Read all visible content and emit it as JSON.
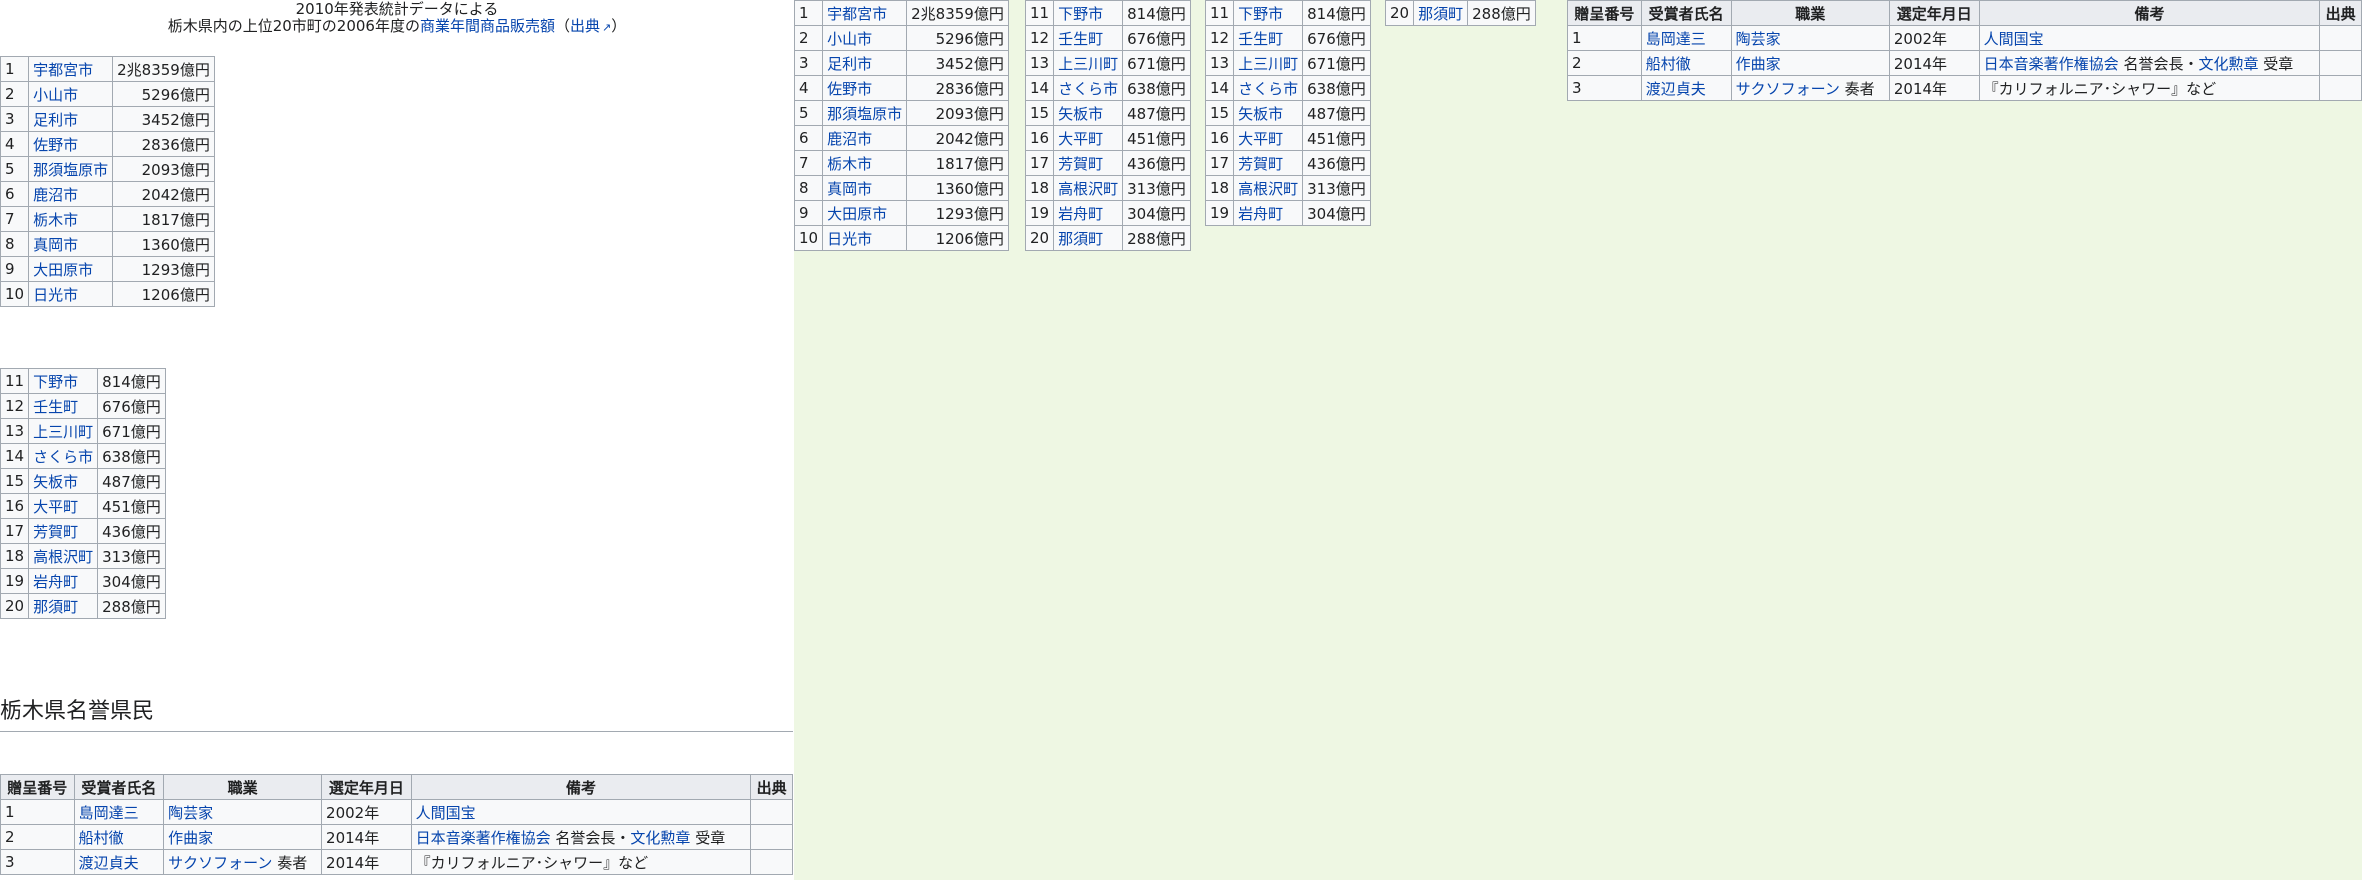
{
  "caption": {
    "line1": "2010年発表統計データによる",
    "line2_prefix": "栃木県内の上位20市町の2006年度の",
    "line2_link": "商業年間商品販売額",
    "line2_open": "（",
    "line2_source": "出典",
    "line2_close": "）"
  },
  "ranks": [
    {
      "rank": "1",
      "city": "宇都宮市",
      "value": "2兆8359億円"
    },
    {
      "rank": "2",
      "city": "小山市",
      "value": "5296億円"
    },
    {
      "rank": "3",
      "city": "足利市",
      "value": "3452億円"
    },
    {
      "rank": "4",
      "city": "佐野市",
      "value": "2836億円"
    },
    {
      "rank": "5",
      "city": "那須塩原市",
      "value": "2093億円"
    },
    {
      "rank": "6",
      "city": "鹿沼市",
      "value": "2042億円"
    },
    {
      "rank": "7",
      "city": "栃木市",
      "value": "1817億円"
    },
    {
      "rank": "8",
      "city": "真岡市",
      "value": "1360億円"
    },
    {
      "rank": "9",
      "city": "大田原市",
      "value": "1293億円"
    },
    {
      "rank": "10",
      "city": "日光市",
      "value": "1206億円"
    },
    {
      "rank": "11",
      "city": "下野市",
      "value": "814億円"
    },
    {
      "rank": "12",
      "city": "壬生町",
      "value": "676億円"
    },
    {
      "rank": "13",
      "city": "上三川町",
      "value": "671億円"
    },
    {
      "rank": "14",
      "city": "さくら市",
      "value": "638億円"
    },
    {
      "rank": "15",
      "city": "矢板市",
      "value": "487億円"
    },
    {
      "rank": "16",
      "city": "大平町",
      "value": "451億円"
    },
    {
      "rank": "17",
      "city": "芳賀町",
      "value": "436億円"
    },
    {
      "rank": "18",
      "city": "高根沢町",
      "value": "313億円"
    },
    {
      "rank": "19",
      "city": "岩舟町",
      "value": "304億円"
    },
    {
      "rank": "20",
      "city": "那須町",
      "value": "288億円"
    }
  ],
  "section_heading": "栃木県名誉県民",
  "honor": {
    "headers": [
      "贈呈番号",
      "受賞者氏名",
      "職業",
      "選定年月日",
      "備考",
      "出典"
    ],
    "rows": [
      {
        "no": "1",
        "name": "島岡達三",
        "job": "陶芸家",
        "date": "2002年",
        "note_parts": [
          {
            "text": "人間国宝",
            "link": true
          }
        ]
      },
      {
        "no": "2",
        "name": "船村徹",
        "job": "作曲家",
        "date": "2014年",
        "note_parts": [
          {
            "text": "日本音楽著作権協会",
            "link": true
          },
          {
            "text": " 名誉会長・",
            "link": false
          },
          {
            "text": "文化勲章",
            "link": true
          },
          {
            "text": " 受章",
            "link": false
          }
        ]
      },
      {
        "no": "3",
        "name": "渡辺貞夫",
        "job": "サクソフォーン",
        "job_suffix": " 奏者",
        "date": "2014年",
        "note_parts": [
          {
            "text": "『カリフォルニア･シャワー』など",
            "link": false
          }
        ]
      }
    ]
  }
}
